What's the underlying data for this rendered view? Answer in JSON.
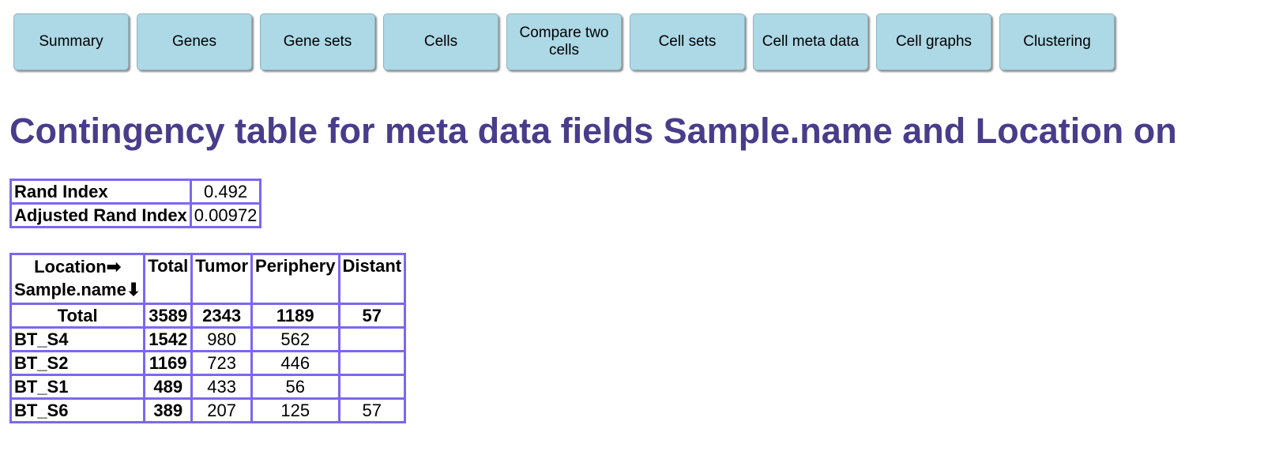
{
  "nav": {
    "buttons": [
      {
        "label": "Summary"
      },
      {
        "label": "Genes"
      },
      {
        "label": "Gene sets"
      },
      {
        "label": "Cells"
      },
      {
        "label": "Compare two cells"
      },
      {
        "label": "Cell sets"
      },
      {
        "label": "Cell meta data"
      },
      {
        "label": "Cell graphs"
      },
      {
        "label": "Clustering"
      }
    ]
  },
  "page_title": "Contingency table for meta data fields Sample.name and Location on",
  "rand": {
    "rows": [
      {
        "label": "Rand Index",
        "value": "0.492"
      },
      {
        "label": "Adjusted Rand Index",
        "value": "0.00972"
      }
    ]
  },
  "contingency": {
    "corner_col": "Location➡",
    "corner_row": "Sample.name⬇",
    "columns": [
      "Total",
      "Tumor",
      "Periphery",
      "Distant"
    ],
    "total_row": {
      "label": "Total",
      "values": [
        "3589",
        "2343",
        "1189",
        "57"
      ]
    },
    "rows": [
      {
        "label": "BT_S4",
        "total": "1542",
        "values": [
          "980",
          "562",
          ""
        ]
      },
      {
        "label": "BT_S2",
        "total": "1169",
        "values": [
          "723",
          "446",
          ""
        ]
      },
      {
        "label": "BT_S1",
        "total": "489",
        "values": [
          "433",
          "56",
          ""
        ]
      },
      {
        "label": "BT_S6",
        "total": "389",
        "values": [
          "207",
          "125",
          "57"
        ]
      }
    ]
  },
  "colors": {
    "button_bg": "#add8e6",
    "title": "#483d8b",
    "table_border": "#7b68ee"
  }
}
